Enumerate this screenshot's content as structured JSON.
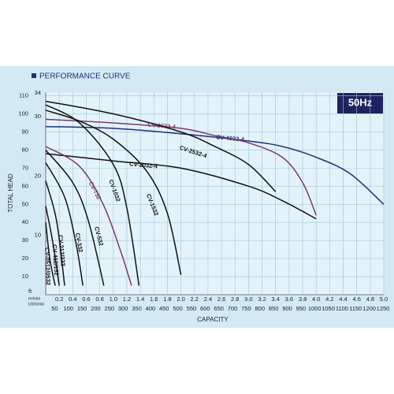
{
  "chart_data": {
    "type": "line",
    "title": "PERFORMANCE CURVE",
    "badge": "50Hz",
    "x_label": "CAPACITY",
    "y_label": "TOTAL HEAD",
    "x_unit": "m³/min",
    "x2_unit": "USG/min",
    "y_unit": "ft",
    "xlim": [
      0,
      5.0
    ],
    "ylim": [
      0,
      112
    ],
    "xticks": [
      0.2,
      0.4,
      0.6,
      0.8,
      {
        "value": 1,
        "label": "1.0"
      },
      1.2,
      1.4,
      1.6,
      1.8,
      {
        "value": 2,
        "label": "2.0"
      },
      2.2,
      2.4,
      2.6,
      2.8,
      {
        "value": 3,
        "label": "3.0"
      },
      3.2,
      3.4,
      3.6,
      3.8,
      {
        "value": 4,
        "label": "4.0"
      },
      4.2,
      4.4,
      4.6,
      4.8,
      {
        "value": 5,
        "label": "5.0"
      }
    ],
    "x2ticks": [
      50,
      100,
      150,
      200,
      250,
      300,
      350,
      400,
      450,
      500,
      550,
      600,
      650,
      700,
      750,
      800,
      850,
      900,
      950,
      1000,
      1050,
      1100,
      1150,
      1200,
      1250
    ],
    "yticks": [
      10,
      20,
      30,
      40,
      50,
      60,
      70,
      80,
      90,
      100,
      110
    ],
    "y2ticks": [
      10,
      20,
      30,
      34
    ],
    "grid": true,
    "series": [
      {
        "name": "CV-4032-4",
        "color": "#1f2f7a",
        "x": [
          0,
          1,
          2,
          3,
          3.5,
          4,
          4.5,
          5
        ],
        "values": [
          93,
          92,
          89,
          85,
          82,
          76,
          67,
          50
        ]
      },
      {
        "name": "CV-3032-4",
        "color": "#7a3a6e",
        "x": [
          0,
          1,
          2,
          2.5,
          3,
          3.5,
          3.8,
          4.0
        ],
        "values": [
          97,
          95,
          92,
          88,
          84,
          76,
          62,
          44
        ]
      },
      {
        "name": "CV-2532-4",
        "color": "#111111",
        "x": [
          0,
          1,
          2,
          2.5,
          3,
          3.4
        ],
        "values": [
          107,
          100,
          90,
          82,
          72,
          57
        ]
      },
      {
        "name": "CV-2032-4",
        "color": "#111111",
        "x": [
          0,
          1,
          2,
          3,
          3.5,
          4
        ],
        "values": [
          78,
          74,
          70,
          60,
          52,
          42
        ]
      },
      {
        "name": "CV-1532",
        "color": "#111111",
        "x": [
          0,
          0.5,
          1,
          1.5,
          1.8,
          2.0
        ],
        "values": [
          102,
          96,
          86,
          68,
          45,
          11
        ]
      },
      {
        "name": "CV-1032",
        "color": "#111111",
        "x": [
          0,
          0.5,
          1,
          1.2,
          1.38
        ],
        "values": [
          105,
          95,
          72,
          48,
          5
        ]
      },
      {
        "name": "CV-732",
        "color": "#7a3a6e",
        "x": [
          0,
          0.5,
          0.85,
          1.1,
          1.27
        ],
        "values": [
          82,
          71,
          50,
          25,
          5
        ]
      },
      {
        "name": "CV-532",
        "color": "#111111",
        "x": [
          0,
          0.4,
          0.63,
          0.86
        ],
        "values": [
          80,
          62,
          41,
          5
        ]
      },
      {
        "name": "CV-332",
        "color": "#111111",
        "x": [
          0,
          0.28,
          0.45,
          0.55
        ],
        "values": [
          73,
          54,
          28,
          5
        ]
      },
      {
        "name": "CV-212/232",
        "color": "#111111",
        "x": [
          0,
          0.16,
          0.28
        ],
        "values": [
          63,
          41,
          5
        ]
      },
      {
        "name": "CV-412/132",
        "color": "#111111",
        "x": [
          0,
          0.1,
          0.2
        ],
        "values": [
          49,
          30,
          5
        ]
      },
      {
        "name": "CV-0512/0532",
        "color": "#111111",
        "x": [
          0,
          0.06,
          0.14
        ],
        "values": [
          40,
          20,
          5
        ]
      }
    ]
  }
}
